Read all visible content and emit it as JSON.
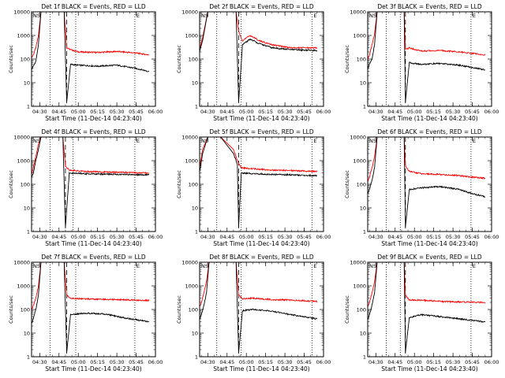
{
  "figure": {
    "colors": {
      "events": "#000000",
      "lld": "#ff0000",
      "frame": "#000000",
      "background": "#ffffff"
    }
  },
  "chart_data": [
    {
      "type": "line",
      "title": "Det 1f BLACK = Events, RED = LLD",
      "xlabel": "Start Time (11-Dec-14 04:23:40)",
      "ylabel": "Counts/sec",
      "yscale": "log",
      "ylim": [
        1,
        10000
      ],
      "yticks": [
        "1",
        "10",
        "100",
        "1000",
        "10000"
      ],
      "xlim": [
        "04:23:40",
        "06:00:00"
      ],
      "xticks": [
        "04:30",
        "04:45",
        "05:00",
        "05:15",
        "05:30",
        "05:45",
        "06:00"
      ],
      "vlines_dotted": [
        "04:38",
        "04:58",
        "05:44"
      ],
      "vline_dashed": "04:51",
      "markers": [
        "N",
        "S",
        "E"
      ],
      "series": [
        {
          "color": "#ff0000",
          "x": [
            "04:23",
            "04:25",
            "04:27",
            "04:29",
            "04:31",
            "04:40",
            "04:49",
            "04:51",
            "04:54",
            "05:00",
            "05:15",
            "05:30",
            "05:45",
            "05:55"
          ],
          "values": [
            100,
            150,
            300,
            1000,
            10000,
            10000,
            10000,
            300,
            250,
            200,
            190,
            210,
            180,
            150
          ]
        },
        {
          "color": "#000000",
          "x": [
            "04:23",
            "04:25",
            "04:27",
            "04:29",
            "04:31",
            "04:40",
            "04:49",
            "04:51",
            "04:54",
            "05:00",
            "05:15",
            "05:30",
            "05:45",
            "05:55"
          ],
          "values": [
            30,
            50,
            80,
            400,
            10000,
            10000,
            10000,
            1.5,
            60,
            55,
            50,
            55,
            40,
            30
          ]
        }
      ]
    },
    {
      "type": "line",
      "title": "Det 2f BLACK = Events, RED = LLD",
      "xlabel": "Start Time (11-Dec-14 04:23:40)",
      "ylabel": "Counts/sec",
      "yscale": "log",
      "ylim": [
        1,
        10000
      ],
      "yticks": [
        "1",
        "10",
        "100",
        "1000",
        "10000"
      ],
      "xlim": [
        "04:23:40",
        "06:00:00"
      ],
      "xticks": [
        "04:30",
        "04:45",
        "05:00",
        "05:15",
        "05:30",
        "05:45",
        "06:00"
      ],
      "vlines_dotted": [
        "04:37",
        "04:56",
        "05:51"
      ],
      "vline_dashed": "04:54",
      "markers": [
        "N",
        "S",
        "E"
      ],
      "series": [
        {
          "color": "#ff0000",
          "x": [
            "04:23",
            "04:26",
            "04:30",
            "04:45",
            "04:52",
            "04:54",
            "04:57",
            "05:03",
            "05:10",
            "05:20",
            "05:35",
            "05:55"
          ],
          "values": [
            200,
            800,
            10000,
            10000,
            10000,
            1500,
            600,
            1000,
            600,
            400,
            300,
            300
          ]
        },
        {
          "color": "#000000",
          "x": [
            "04:23",
            "04:26",
            "04:30",
            "04:45",
            "04:52",
            "04:54",
            "04:57",
            "05:03",
            "05:10",
            "05:20",
            "05:35",
            "05:55"
          ],
          "values": [
            150,
            600,
            10000,
            10000,
            10000,
            1.5,
            400,
            700,
            450,
            300,
            250,
            230
          ]
        }
      ]
    },
    {
      "type": "line",
      "title": "Det 3f BLACK = Events, RED = LLD",
      "xlabel": "Start Time (11-Dec-14 04:23:40)",
      "ylabel": "Counts/sec",
      "yscale": "log",
      "ylim": [
        1,
        10000
      ],
      "yticks": [
        "1",
        "10",
        "100",
        "1000",
        "10000"
      ],
      "xlim": [
        "04:23:40",
        "06:00:00"
      ],
      "xticks": [
        "04:30",
        "04:45",
        "05:00",
        "05:15",
        "05:30",
        "05:45",
        "06:00"
      ],
      "vlines_dotted": [
        "04:38",
        "04:49",
        "05:44"
      ],
      "vline_dashed": "04:53",
      "markers": [
        "N",
        "S",
        "E"
      ],
      "series": [
        {
          "color": "#ff0000",
          "x": [
            "04:23",
            "04:25",
            "04:27",
            "04:29",
            "04:31",
            "04:40",
            "04:52",
            "04:53",
            "04:56",
            "05:05",
            "05:20",
            "05:35",
            "05:55"
          ],
          "values": [
            80,
            150,
            400,
            1200,
            10000,
            10000,
            10000,
            250,
            300,
            220,
            230,
            200,
            150
          ]
        },
        {
          "color": "#000000",
          "x": [
            "04:23",
            "04:25",
            "04:27",
            "04:29",
            "04:31",
            "04:40",
            "04:52",
            "04:53",
            "04:56",
            "05:05",
            "05:20",
            "05:35",
            "05:55"
          ],
          "values": [
            30,
            60,
            100,
            400,
            10000,
            10000,
            10000,
            1.5,
            70,
            60,
            65,
            55,
            35
          ]
        }
      ]
    },
    {
      "type": "line",
      "title": "Det 4f BLACK = Events, RED = LLD",
      "xlabel": "Start Time (11-Dec-14 04:23:40)",
      "ylabel": "Counts/sec",
      "yscale": "log",
      "ylim": [
        1,
        10000
      ],
      "yticks": [
        "1",
        "10",
        "100",
        "1000",
        "10000"
      ],
      "xlim": [
        "04:23:40",
        "06:00:00"
      ],
      "xticks": [
        "04:30",
        "04:45",
        "05:00",
        "05:15",
        "05:30",
        "05:45",
        "06:00"
      ],
      "vlines_dotted": [
        "04:38",
        "04:56",
        "05:44"
      ],
      "vline_dashed": "04:50",
      "markers": [
        "N",
        "S",
        "E"
      ],
      "series": [
        {
          "color": "#ff0000",
          "x": [
            "04:23",
            "04:25",
            "04:27",
            "04:29",
            "04:31",
            "04:40",
            "04:48",
            "04:50",
            "04:53",
            "05:05",
            "05:20",
            "05:35",
            "05:55"
          ],
          "values": [
            200,
            500,
            1500,
            5000,
            10000,
            10000,
            10000,
            600,
            400,
            350,
            330,
            320,
            300
          ]
        },
        {
          "color": "#000000",
          "x": [
            "04:23",
            "04:25",
            "04:27",
            "04:29",
            "04:31",
            "04:40",
            "04:48",
            "04:50",
            "04:53",
            "05:05",
            "05:20",
            "05:35",
            "05:55"
          ],
          "values": [
            150,
            300,
            1000,
            3000,
            10000,
            10000,
            10000,
            1.5,
            300,
            280,
            270,
            260,
            250
          ]
        }
      ]
    },
    {
      "type": "line",
      "title": "Det 5f BLACK = Events, RED = LLD",
      "xlabel": "Start Time (11-Dec-14 04:23:40)",
      "ylabel": "Counts/sec",
      "yscale": "log",
      "ylim": [
        1,
        10000
      ],
      "yticks": [
        "1",
        "10",
        "100",
        "1000",
        "10000"
      ],
      "xlim": [
        "04:23:40",
        "06:00:00"
      ],
      "xticks": [
        "04:30",
        "04:45",
        "05:00",
        "05:15",
        "05:30",
        "05:45",
        "06:00"
      ],
      "vlines_dotted": [
        "04:37",
        "04:56",
        "05:51"
      ],
      "vline_dashed": "04:54",
      "markers": [
        "N",
        "S",
        "E"
      ],
      "series": [
        {
          "color": "#ff0000",
          "x": [
            "04:23",
            "04:26",
            "04:30",
            "04:40",
            "04:50",
            "04:53",
            "04:56",
            "05:05",
            "05:20",
            "05:35",
            "05:55"
          ],
          "values": [
            300,
            3000,
            10000,
            10000,
            3000,
            1000,
            500,
            450,
            400,
            380,
            350
          ]
        },
        {
          "color": "#000000",
          "x": [
            "04:23",
            "04:26",
            "04:30",
            "04:40",
            "04:50",
            "04:53",
            "04:54",
            "04:56",
            "05:05",
            "05:20",
            "05:35",
            "05:55"
          ],
          "values": [
            200,
            2000,
            10000,
            10000,
            2000,
            700,
            1.5,
            300,
            280,
            260,
            250,
            230
          ]
        }
      ]
    },
    {
      "type": "line",
      "title": "Det 6f BLACK = Events, RED = LLD",
      "xlabel": "Start Time (11-Dec-14 04:23:40)",
      "ylabel": "Counts/sec",
      "yscale": "log",
      "ylim": [
        1,
        10000
      ],
      "yticks": [
        "1",
        "10",
        "100",
        "1000",
        "10000"
      ],
      "xlim": [
        "04:23:40",
        "06:00:00"
      ],
      "xticks": [
        "04:30",
        "04:45",
        "05:00",
        "05:15",
        "05:30",
        "05:45",
        "06:00"
      ],
      "vlines_dotted": [
        "04:38",
        "04:49",
        "05:44"
      ],
      "vline_dashed": "04:53",
      "markers": [
        "N",
        "S",
        "E"
      ],
      "series": [
        {
          "color": "#ff0000",
          "x": [
            "04:23",
            "04:25",
            "04:27",
            "04:29",
            "04:31",
            "04:40",
            "04:52",
            "04:53",
            "04:56",
            "05:05",
            "05:20",
            "05:35",
            "05:45",
            "05:55"
          ],
          "values": [
            100,
            200,
            500,
            1500,
            10000,
            10000,
            10000,
            600,
            350,
            280,
            260,
            230,
            200,
            180
          ]
        },
        {
          "color": "#000000",
          "x": [
            "04:23",
            "04:25",
            "04:27",
            "04:29",
            "04:31",
            "04:40",
            "04:52",
            "04:53",
            "04:56",
            "05:05",
            "05:20",
            "05:35",
            "05:45",
            "05:55"
          ],
          "values": [
            30,
            60,
            150,
            500,
            10000,
            10000,
            10000,
            1.5,
            60,
            70,
            80,
            60,
            40,
            30
          ]
        }
      ]
    },
    {
      "type": "line",
      "title": "Det 7f BLACK = Events, RED = LLD",
      "xlabel": "Start Time (11-Dec-14 04:23:40)",
      "ylabel": "Counts/sec",
      "yscale": "log",
      "ylim": [
        1,
        10000
      ],
      "yticks": [
        "1",
        "10",
        "100",
        "1000",
        "10000"
      ],
      "xlim": [
        "04:23:40",
        "06:00:00"
      ],
      "xticks": [
        "04:30",
        "04:45",
        "05:00",
        "05:15",
        "05:30",
        "05:45",
        "06:00"
      ],
      "vlines_dotted": [
        "04:38",
        "04:58",
        "05:44"
      ],
      "vline_dashed": "04:51",
      "markers": [
        "N",
        "S",
        "E"
      ],
      "series": [
        {
          "color": "#ff0000",
          "x": [
            "04:23",
            "04:25",
            "04:27",
            "04:29",
            "04:31",
            "04:40",
            "04:49",
            "04:51",
            "04:54",
            "05:05",
            "05:20",
            "05:35",
            "05:55"
          ],
          "values": [
            80,
            150,
            300,
            1000,
            10000,
            10000,
            10000,
            400,
            300,
            280,
            270,
            260,
            240
          ]
        },
        {
          "color": "#000000",
          "x": [
            "04:23",
            "04:25",
            "04:27",
            "04:29",
            "04:31",
            "04:40",
            "04:49",
            "04:51",
            "04:54",
            "05:05",
            "05:20",
            "05:35",
            "05:55"
          ],
          "values": [
            20,
            40,
            100,
            400,
            10000,
            10000,
            10000,
            1.5,
            60,
            70,
            65,
            45,
            30
          ]
        }
      ]
    },
    {
      "type": "line",
      "title": "Det 8f BLACK = Events, RED = LLD",
      "xlabel": "Start Time (11-Dec-14 04:23:40)",
      "ylabel": "Counts/sec",
      "yscale": "log",
      "ylim": [
        1,
        10000
      ],
      "yticks": [
        "1",
        "10",
        "100",
        "1000",
        "10000"
      ],
      "xlim": [
        "04:23:40",
        "06:00:00"
      ],
      "xticks": [
        "04:30",
        "04:45",
        "05:00",
        "05:15",
        "05:30",
        "05:45",
        "06:00"
      ],
      "vlines_dotted": [
        "04:37",
        "04:56",
        "05:51"
      ],
      "vline_dashed": "04:54",
      "markers": [
        "N",
        "S",
        "E"
      ],
      "series": [
        {
          "color": "#ff0000",
          "x": [
            "04:23",
            "04:25",
            "04:27",
            "04:29",
            "04:31",
            "04:40",
            "04:52",
            "04:54",
            "04:57",
            "05:05",
            "05:20",
            "05:35",
            "05:55"
          ],
          "values": [
            100,
            200,
            500,
            1500,
            10000,
            10000,
            10000,
            400,
            280,
            300,
            260,
            250,
            220
          ]
        },
        {
          "color": "#000000",
          "x": [
            "04:23",
            "04:25",
            "04:27",
            "04:29",
            "04:31",
            "04:40",
            "04:52",
            "04:54",
            "04:57",
            "05:05",
            "05:20",
            "05:35",
            "05:55"
          ],
          "values": [
            30,
            60,
            150,
            500,
            10000,
            10000,
            10000,
            1.5,
            90,
            100,
            85,
            60,
            40
          ]
        }
      ]
    },
    {
      "type": "line",
      "title": "Det 9f BLACK = Events, RED = LLD",
      "xlabel": "Start Time (11-Dec-14 04:23:40)",
      "ylabel": "Counts/sec",
      "yscale": "log",
      "ylim": [
        1,
        10000
      ],
      "yticks": [
        "1",
        "10",
        "100",
        "1000",
        "10000"
      ],
      "xlim": [
        "04:23:40",
        "06:00:00"
      ],
      "xticks": [
        "04:30",
        "04:45",
        "05:00",
        "05:15",
        "05:30",
        "05:45",
        "06:00"
      ],
      "vlines_dotted": [
        "04:38",
        "04:49",
        "05:44"
      ],
      "vline_dashed": "04:53",
      "markers": [
        "N",
        "S",
        "E"
      ],
      "series": [
        {
          "color": "#ff0000",
          "x": [
            "04:23",
            "04:25",
            "04:27",
            "04:29",
            "04:31",
            "04:40",
            "04:52",
            "04:53",
            "04:56",
            "05:05",
            "05:20",
            "05:35",
            "05:55"
          ],
          "values": [
            100,
            200,
            500,
            1500,
            10000,
            10000,
            10000,
            400,
            250,
            250,
            220,
            210,
            200
          ]
        },
        {
          "color": "#000000",
          "x": [
            "04:23",
            "04:25",
            "04:27",
            "04:29",
            "04:31",
            "04:40",
            "04:52",
            "04:53",
            "04:56",
            "05:05",
            "05:20",
            "05:35",
            "05:55"
          ],
          "values": [
            30,
            60,
            150,
            500,
            10000,
            10000,
            10000,
            1.5,
            45,
            60,
            50,
            40,
            30
          ]
        }
      ]
    }
  ]
}
